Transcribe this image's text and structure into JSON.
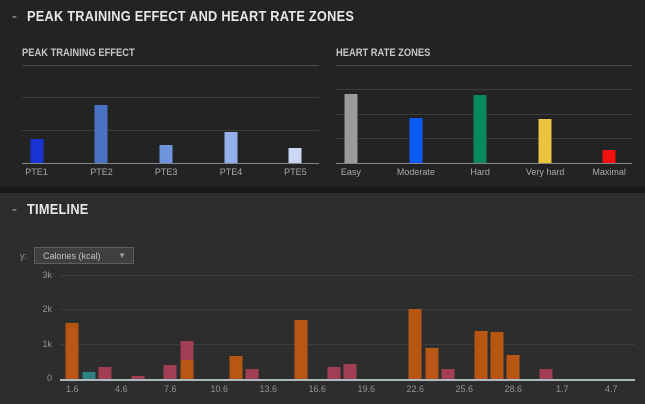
{
  "colors": {
    "page_bg": "#141414",
    "gap_bg": "#191919",
    "panel_top_bg": "#232323",
    "panel_bottom_bg": "#2d2d2d",
    "section_title": "#e8e8e8",
    "chart_title": "#c6c6c6",
    "rule": "#4a4a4a",
    "gridline": "#3c3c3c",
    "axis_line_top": "#7f878c",
    "axis_line_timeline": "#aeb9bf",
    "axis_label": "#949494",
    "cat_label": "#a9a9a9",
    "collapse": "#b0b0b0",
    "dropdown_bg": "#3f3f3f",
    "dropdown_border": "#5e5e5e",
    "dropdown_text": "#c4c4c4",
    "dropdown_arrow": "#9a9a9a",
    "bar_orange": "#b85614",
    "bar_crimson": "#a23e54",
    "bar_teal": "#2e8181"
  },
  "sections": {
    "training": {
      "collapse_glyph": "-",
      "title": "PEAK TRAINING EFFECT AND HEART RATE ZONES"
    },
    "timeline": {
      "collapse_glyph": "-",
      "title": "TIMELINE",
      "y_selector_label": "y:",
      "dropdown": {
        "value": "Calories (kcal)",
        "arrow_glyph": "▼"
      }
    }
  },
  "chart_data": [
    {
      "type": "bar",
      "title": "PEAK TRAINING EFFECT",
      "categories": [
        "PTE1",
        "PTE2",
        "PTE3",
        "PTE4",
        "PTE5"
      ],
      "values": [
        0.75,
        1.8,
        0.55,
        0.95,
        0.47
      ],
      "ylim": [
        0,
        3
      ],
      "gridlines": [
        1,
        2
      ],
      "bar_colors": [
        "#1733d1",
        "#4a72c4",
        "#6e94de",
        "#93b0ea",
        "#c9d6f4"
      ],
      "bar_centers_pct": [
        4.9,
        26.8,
        48.6,
        70.5,
        92.2
      ],
      "note": "y-axis unlabeled; values estimated in gridline units"
    },
    {
      "type": "bar",
      "title": "HEART RATE ZONES",
      "categories": [
        "Easy",
        "Moderate",
        "Hard",
        "Very hard",
        "Maximal"
      ],
      "values": [
        2.85,
        1.85,
        2.8,
        1.8,
        0.55
      ],
      "ylim": [
        0,
        4
      ],
      "gridlines": [
        1,
        2,
        3
      ],
      "bar_colors": [
        "#9b9b9b",
        "#0b5af7",
        "#06895f",
        "#ecc33c",
        "#f21111"
      ],
      "bar_centers_pct": [
        5.2,
        27.1,
        48.8,
        70.7,
        92.3
      ],
      "note": "y-axis unlabeled; values estimated in gridline units"
    },
    {
      "type": "bar",
      "title": "TIMELINE",
      "ylabel": "Calories (kcal)",
      "ylim": [
        0,
        3130
      ],
      "yticks": [
        {
          "label": "0",
          "value": 0
        },
        {
          "label": "1k",
          "value": 1000
        },
        {
          "label": "2k",
          "value": 2000
        },
        {
          "label": "3k",
          "value": 3000
        }
      ],
      "x_axis": {
        "unit": "date (day.month)",
        "day_min": 0.25,
        "day_max": 35.45
      },
      "xticks": [
        {
          "label": "1.6",
          "day": 1
        },
        {
          "label": "4.6",
          "day": 4
        },
        {
          "label": "7.6",
          "day": 7
        },
        {
          "label": "10.6",
          "day": 10
        },
        {
          "label": "13.6",
          "day": 13
        },
        {
          "label": "16.6",
          "day": 16
        },
        {
          "label": "19.6",
          "day": 19
        },
        {
          "label": "22.6",
          "day": 22
        },
        {
          "label": "25.6",
          "day": 25
        },
        {
          "label": "28.6",
          "day": 28
        },
        {
          "label": "1.7",
          "day": 31
        },
        {
          "label": "4.7",
          "day": 34
        }
      ],
      "bars": [
        {
          "date": "1.6",
          "day": 1,
          "segments": [
            {
              "color": "orange",
              "value": 1630
            }
          ]
        },
        {
          "date": "2.6",
          "day": 2,
          "segments": [
            {
              "color": "teal",
              "value": 200
            }
          ]
        },
        {
          "date": "3.6",
          "day": 3,
          "segments": [
            {
              "color": "crimson",
              "value": 340
            }
          ]
        },
        {
          "date": "5.6",
          "day": 5,
          "segments": [
            {
              "color": "crimson",
              "value": 90
            }
          ]
        },
        {
          "date": "7.6",
          "day": 7,
          "segments": [
            {
              "color": "crimson",
              "value": 420
            }
          ]
        },
        {
          "date": "8.6",
          "day": 8,
          "segments": [
            {
              "color": "orange",
              "value": 540
            },
            {
              "color": "crimson",
              "value": 560
            }
          ]
        },
        {
          "date": "11.6",
          "day": 11,
          "segments": [
            {
              "color": "orange",
              "value": 670
            }
          ]
        },
        {
          "date": "12.6",
          "day": 12,
          "segments": [
            {
              "color": "crimson",
              "value": 300
            }
          ]
        },
        {
          "date": "15.6",
          "day": 15,
          "segments": [
            {
              "color": "orange",
              "value": 1700
            }
          ]
        },
        {
          "date": "17.6",
          "day": 17,
          "segments": [
            {
              "color": "crimson",
              "value": 340
            }
          ]
        },
        {
          "date": "18.6",
          "day": 18,
          "segments": [
            {
              "color": "crimson",
              "value": 430
            }
          ]
        },
        {
          "date": "22.6",
          "day": 22,
          "segments": [
            {
              "color": "orange",
              "value": 2020
            }
          ]
        },
        {
          "date": "23.6",
          "day": 23,
          "segments": [
            {
              "color": "orange",
              "value": 900
            }
          ]
        },
        {
          "date": "24.6",
          "day": 24,
          "segments": [
            {
              "color": "crimson",
              "value": 290
            }
          ]
        },
        {
          "date": "26.6",
          "day": 26,
          "segments": [
            {
              "color": "orange",
              "value": 1400
            }
          ]
        },
        {
          "date": "27.6",
          "day": 27,
          "segments": [
            {
              "color": "orange",
              "value": 1360
            }
          ]
        },
        {
          "date": "28.6",
          "day": 28,
          "segments": [
            {
              "color": "orange",
              "value": 710
            }
          ]
        },
        {
          "date": "30.6",
          "day": 30,
          "segments": [
            {
              "color": "crimson",
              "value": 300
            }
          ]
        }
      ]
    }
  ]
}
